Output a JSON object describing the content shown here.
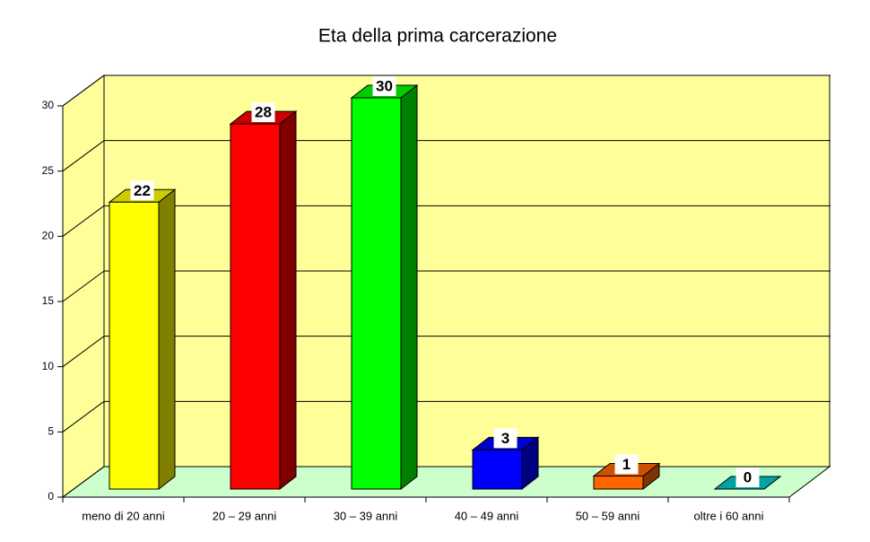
{
  "chart_data": {
    "type": "bar3d",
    "title": "Eta della prima carcerazione",
    "categories": [
      "meno di 20 anni",
      "20 – 29 anni",
      "30 – 39 anni",
      "40 – 49 anni",
      "50 – 59 anni",
      "oltre i 60 anni"
    ],
    "values": [
      22,
      28,
      30,
      3,
      1,
      0
    ],
    "colors": [
      "#ffff00",
      "#ff0000",
      "#00ff00",
      "#0000ff",
      "#ff6600",
      "#00cccc"
    ],
    "ylim": [
      0,
      30
    ],
    "yticks": [
      0,
      5,
      10,
      15,
      20,
      25,
      30
    ],
    "grid": true
  }
}
